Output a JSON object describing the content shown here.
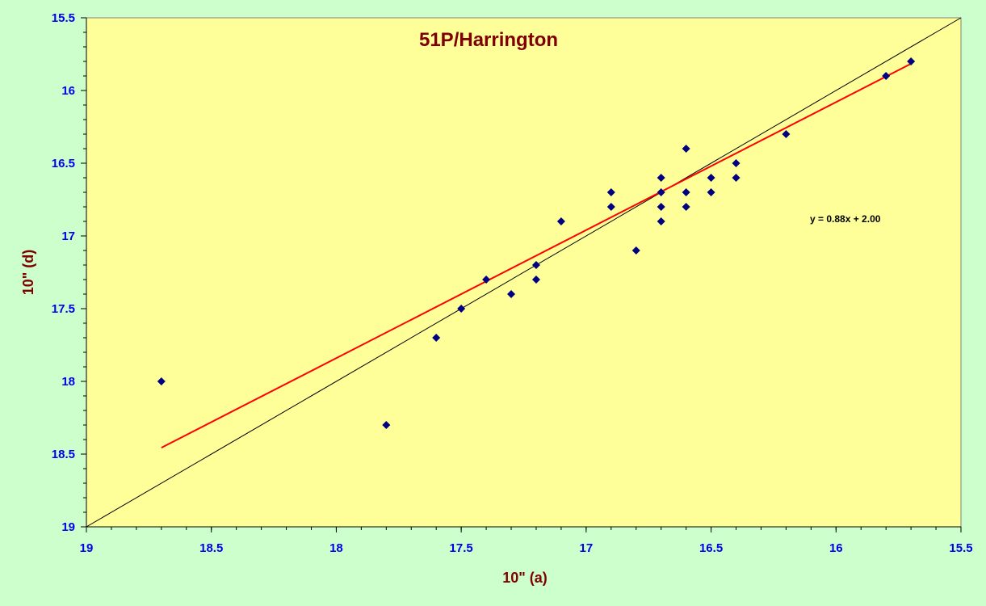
{
  "colors": {
    "background": "#ccffcc",
    "plot_area": "#ffff99",
    "points": "#000080",
    "trendline": "#ff0000",
    "reference_line": "#000000",
    "tick_labels": "#0000ee",
    "titles": "#800000"
  },
  "chart_data": {
    "type": "scatter",
    "title": "51P/Harrington",
    "xlabel": "10\" (a)",
    "ylabel": "10\" (d)",
    "xlim": [
      19,
      15.5
    ],
    "ylim": [
      19,
      15.5
    ],
    "x_reversed": true,
    "y_reversed": true,
    "x_ticks": [
      19,
      18.5,
      18,
      17.5,
      17,
      16.5,
      16,
      15.5
    ],
    "y_ticks": [
      15.5,
      16,
      16.5,
      17,
      17.5,
      18,
      18.5,
      19
    ],
    "x_tick_labels": [
      "19",
      "18.5",
      "18",
      "17.5",
      "17",
      "16.5",
      "16",
      "15.5"
    ],
    "y_tick_labels": [
      "15.5",
      "16",
      "16.5",
      "17",
      "17.5",
      "18",
      "18.5",
      "19"
    ],
    "grid": false,
    "series": [
      {
        "marker": "diamond",
        "x": [
          18.7,
          17.8,
          17.6,
          17.5,
          17.4,
          17.3,
          17.2,
          17.2,
          17.1,
          16.9,
          16.9,
          16.8,
          16.7,
          16.7,
          16.7,
          16.7,
          16.6,
          16.6,
          16.6,
          16.5,
          16.5,
          16.4,
          16.4,
          16.2,
          15.8,
          15.7
        ],
        "y": [
          18.0,
          18.3,
          17.7,
          17.5,
          17.3,
          17.4,
          17.2,
          17.3,
          16.9,
          16.7,
          16.8,
          17.1,
          16.6,
          16.7,
          16.8,
          16.9,
          16.4,
          16.7,
          16.8,
          16.6,
          16.7,
          16.5,
          16.6,
          16.3,
          15.9,
          15.8
        ]
      }
    ],
    "trendline": {
      "slope": 0.88,
      "intercept": 2.0,
      "x_range": [
        18.7,
        15.7
      ]
    },
    "reference_line": {
      "slope": 1,
      "intercept": 0
    },
    "annotation": "y = 0.88x + 2.00"
  }
}
